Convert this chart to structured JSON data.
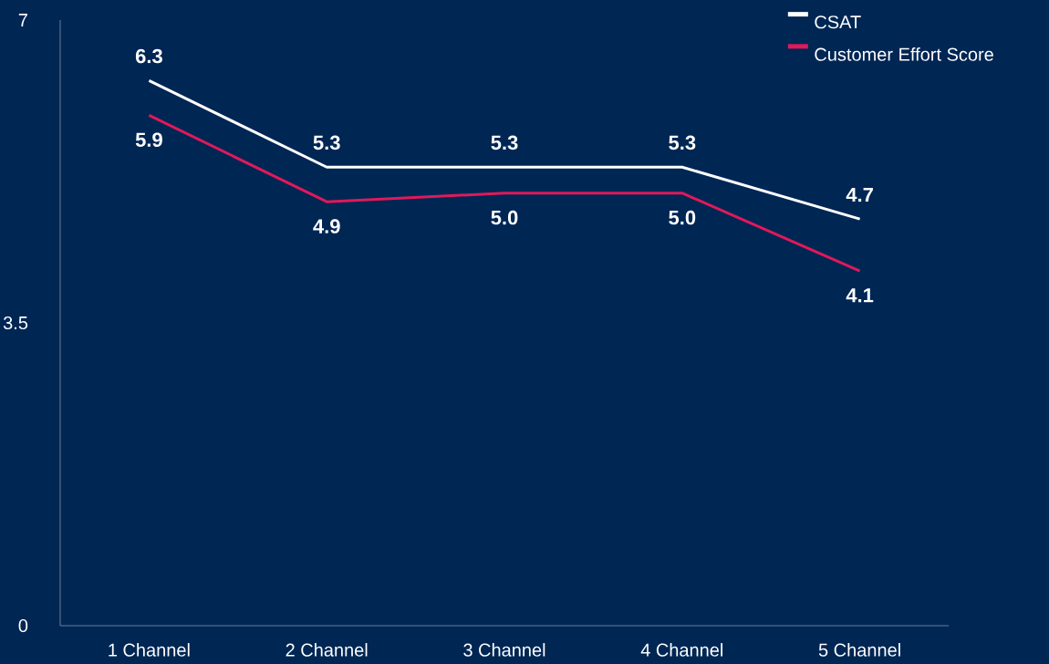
{
  "chart_data": {
    "type": "line",
    "categories": [
      "1 Channel",
      "2 Channel",
      "3 Channel",
      "4 Channel",
      "5 Channel"
    ],
    "series": [
      {
        "name": "CSAT",
        "color": "#ffffff",
        "values": [
          6.3,
          5.3,
          5.3,
          5.3,
          4.7
        ],
        "value_labels": [
          "6.3",
          "5.3",
          "5.3",
          "5.3",
          "4.7"
        ]
      },
      {
        "name": "Customer Effort Score",
        "color": "#e0195a",
        "values": [
          5.9,
          4.9,
          5.0,
          5.0,
          4.1
        ],
        "value_labels": [
          "5.9",
          "4.9",
          "5.0",
          "5.0",
          "4.1"
        ]
      }
    ],
    "ylim": [
      0,
      7
    ],
    "yticks": [
      0,
      3.5,
      7
    ],
    "grid": false,
    "legend": "top right",
    "marker": "none",
    "line_style": "solid"
  }
}
